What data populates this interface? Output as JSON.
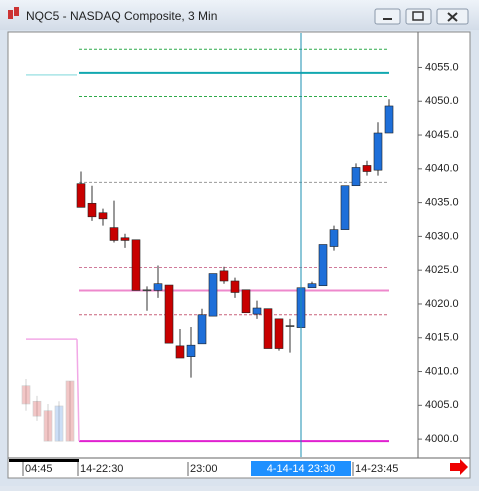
{
  "window_title": "NQC5 - NASDAQ Composite, 3 Min",
  "chart_data": {
    "type": "candlestick",
    "categories": [
      "04:45",
      null,
      null,
      null,
      null,
      "14-22:30",
      null,
      null,
      null,
      null,
      null,
      null,
      null,
      null,
      null,
      "23:00",
      null,
      null,
      null,
      null,
      null,
      null,
      null,
      null,
      null,
      "4-14-14 23:30",
      null,
      null,
      null,
      null,
      "14-23:45",
      null,
      null,
      null
    ],
    "cursor": "4-14-14 23:30",
    "up_color": "#1e6fd9",
    "down_color": "#c80000",
    "previous_session": [
      {
        "o": 4007.9,
        "h": 4008.9,
        "l": 4004.2,
        "c": 4005.2
      },
      {
        "o": 4005.6,
        "h": 4006.4,
        "l": 4002.7,
        "c": 4003.4
      },
      {
        "o": 4004.2,
        "h": 4005.2,
        "l": 3999.7,
        "c": 3999.7
      },
      {
        "o": 3999.7,
        "h": 4005.6,
        "l": 3999.7,
        "c": 4004.9
      },
      {
        "o": 4008.6,
        "h": 4008.6,
        "l": 3999.7,
        "c": 3999.7
      }
    ],
    "candles": [
      {
        "o": 4037.8,
        "h": 4039.6,
        "l": 4034.3,
        "c": 4034.3
      },
      {
        "o": 4034.9,
        "h": 4037.5,
        "l": 4032.3,
        "c": 4032.9
      },
      {
        "o": 4033.5,
        "h": 4034.1,
        "l": 4031.6,
        "c": 4032.6
      },
      {
        "o": 4031.3,
        "h": 4035.3,
        "l": 4029.1,
        "c": 4029.4
      },
      {
        "o": 4029.8,
        "h": 4030.4,
        "l": 4028.3,
        "c": 4029.4
      },
      {
        "o": 4029.5,
        "h": 4029.5,
        "l": 4022.0,
        "c": 4022.0
      },
      {
        "o": 4022.1,
        "h": 4022.6,
        "l": 4019.0,
        "c": 4022.1
      },
      {
        "o": 4022.0,
        "h": 4025.7,
        "l": 4020.9,
        "c": 4023.0
      },
      {
        "o": 4022.8,
        "h": 4022.8,
        "l": 4014.2,
        "c": 4014.2
      },
      {
        "o": 4013.8,
        "h": 4016.3,
        "l": 4012.0,
        "c": 4012.0
      },
      {
        "o": 4012.2,
        "h": 4016.6,
        "l": 4009.1,
        "c": 4013.9
      },
      {
        "o": 4014.1,
        "h": 4019.3,
        "l": 4014.1,
        "c": 4018.4
      },
      {
        "o": 4018.2,
        "h": 4024.5,
        "l": 4018.2,
        "c": 4024.5
      },
      {
        "o": 4024.9,
        "h": 4025.5,
        "l": 4023.0,
        "c": 4023.4
      },
      {
        "o": 4023.4,
        "h": 4023.9,
        "l": 4020.9,
        "c": 4021.7
      },
      {
        "o": 4022.1,
        "h": 4022.1,
        "l": 4018.7,
        "c": 4018.7
      },
      {
        "o": 4018.5,
        "h": 4020.5,
        "l": 4017.8,
        "c": 4019.4
      },
      {
        "o": 4019.3,
        "h": 4019.3,
        "l": 4013.4,
        "c": 4013.4
      },
      {
        "o": 4017.8,
        "h": 4017.8,
        "l": 4013.1,
        "c": 4013.4
      },
      {
        "o": 4016.8,
        "h": 4017.8,
        "l": 4012.8,
        "c": 4016.8
      },
      {
        "o": 4016.5,
        "h": 4022.4,
        "l": 4016.5,
        "c": 4022.4
      },
      {
        "o": 4022.4,
        "h": 4023.3,
        "l": 4022.4,
        "c": 4023.0
      },
      {
        "o": 4022.7,
        "h": 4028.8,
        "l": 4022.7,
        "c": 4028.8
      },
      {
        "o": 4028.5,
        "h": 4031.6,
        "l": 4027.9,
        "c": 4031.0
      },
      {
        "o": 4031.0,
        "h": 4037.5,
        "l": 4031.0,
        "c": 4037.5
      },
      {
        "o": 4037.5,
        "h": 4040.8,
        "l": 4037.5,
        "c": 4040.2
      },
      {
        "o": 4040.5,
        "h": 4041.2,
        "l": 4039.0,
        "c": 4039.6
      },
      {
        "o": 4039.8,
        "h": 4046.9,
        "l": 4039.0,
        "c": 4045.3
      },
      {
        "o": 4045.3,
        "h": 4050.3,
        "l": 4045.3,
        "c": 4049.3
      }
    ],
    "levels": [
      {
        "value": 4057.7,
        "color": "#2eaa4a",
        "style": "dashed"
      },
      {
        "value": 4054.2,
        "color": "#12a8b0",
        "style": "solid"
      },
      {
        "value": 4050.7,
        "color": "#2eaa4a",
        "style": "dashed"
      },
      {
        "value": 4038.0,
        "color": "#999999",
        "style": "dashed"
      },
      {
        "value": 4025.4,
        "color": "#d07a9a",
        "style": "dashed"
      },
      {
        "value": 4022.0,
        "color": "#ee88cc",
        "style": "solid"
      },
      {
        "value": 4018.4,
        "color": "#c8607a",
        "style": "dashed"
      },
      {
        "value": 3999.7,
        "color": "#e020d0",
        "style": "solid"
      }
    ],
    "previous_levels": [
      {
        "value": 4053.9,
        "color": "#a8e4e6"
      },
      {
        "value": 4014.8,
        "color": "#f2a8e6"
      }
    ],
    "ylim": [
      3997.5,
      4060.1
    ],
    "yticks": [
      {
        "value": 4000,
        "label": "4000.0"
      },
      {
        "value": 4005,
        "label": "4005.0"
      },
      {
        "value": 4010,
        "label": "4010.0"
      },
      {
        "value": 4015,
        "label": "4015.0"
      },
      {
        "value": 4020,
        "label": "4020.0"
      },
      {
        "value": 4025,
        "label": "4025.0"
      },
      {
        "value": 4030,
        "label": "4030.0"
      },
      {
        "value": 4035,
        "label": "4035.0"
      },
      {
        "value": 4040,
        "label": "4040.0"
      },
      {
        "value": 4045,
        "label": "4045.0"
      },
      {
        "value": 4050,
        "label": "4050.0"
      },
      {
        "value": 4055,
        "label": "4055.0"
      }
    ]
  }
}
